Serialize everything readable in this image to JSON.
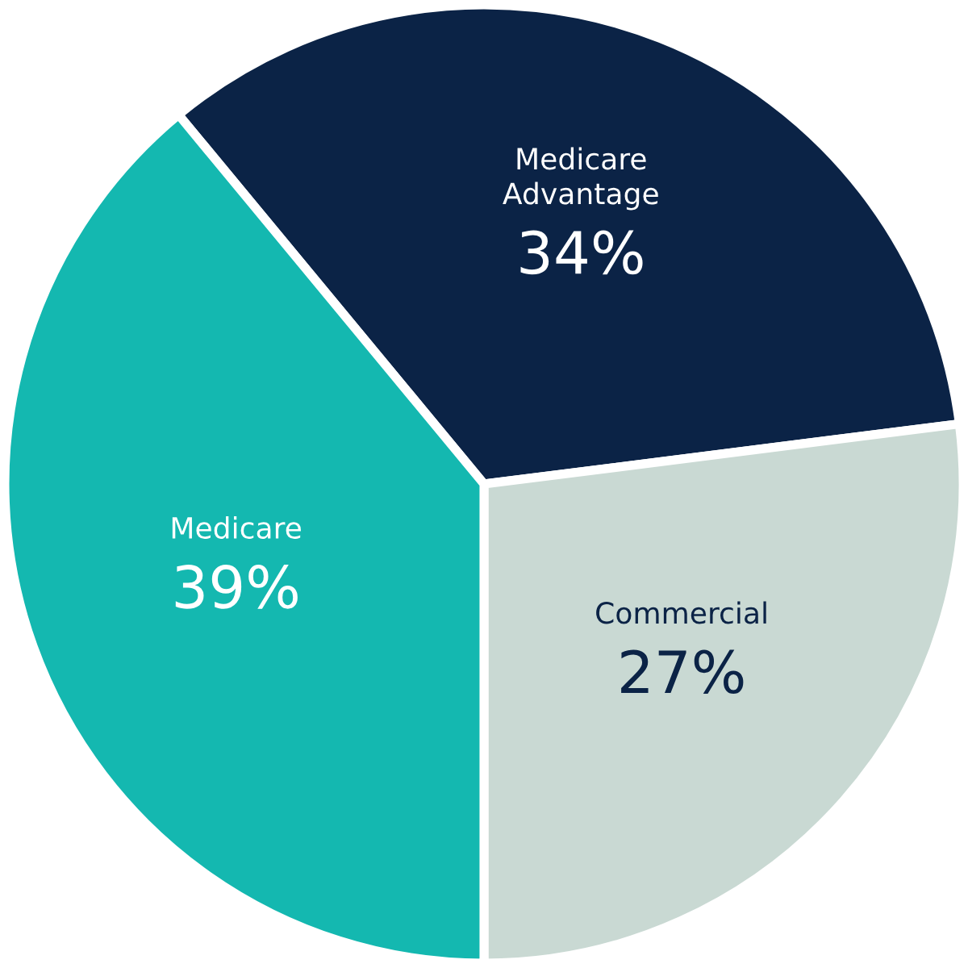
{
  "chart_data": {
    "type": "pie",
    "categories": [
      "Medicare Advantage",
      "Commercial",
      "Medicare"
    ],
    "values": [
      34,
      27,
      39
    ],
    "value_labels": [
      "34%",
      "27%",
      "39%"
    ],
    "colors": [
      "#0b2346",
      "#c9d9d3",
      "#14b8b0"
    ]
  }
}
